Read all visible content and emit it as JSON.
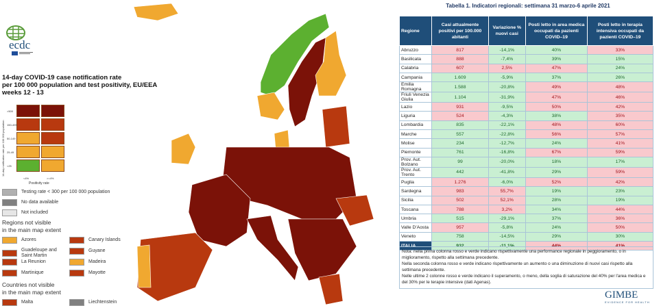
{
  "map": {
    "logo_text": "ecdc",
    "title_lines": [
      "14-day COVID-19 case notification rate",
      "per 100 000 population and test positivity, EU/EEA",
      "weeks 12 - 13"
    ],
    "matrix": {
      "y_axis_label": "14-day notification rate per 100 000 population",
      "y_ticks": [
        ">500",
        "150-499",
        "50-149",
        "25-49",
        "<25"
      ],
      "x_axis_label": "Positivity rate",
      "x_ticks": [
        "<4%",
        ">=4%"
      ],
      "colors": [
        [
          "#7b1208",
          "#7b1208"
        ],
        [
          "#b8390f",
          "#b8390f"
        ],
        [
          "#f0a830",
          "#b8390f"
        ],
        [
          "#f0a830",
          "#f0a830"
        ],
        [
          "#5cb030",
          "#f0a830"
        ]
      ]
    },
    "legend": [
      {
        "label": "Testing rate < 300 per 100 000 population",
        "color": "#b0b0b0"
      },
      {
        "label": "No data available",
        "color": "#808080"
      },
      {
        "label": "Not included",
        "color": "#e6e6e6"
      }
    ],
    "regions_heading": [
      "Regions not visible",
      "in the main map extent"
    ],
    "regions": [
      {
        "label": "Azores",
        "color": "#f0a830"
      },
      {
        "label": "Canary Islands",
        "color": "#b8390f"
      },
      {
        "label": "Guadeloupe and Saint Martin",
        "color": "#b8390f"
      },
      {
        "label": "Guyane",
        "color": "#b8390f"
      },
      {
        "label": "La Reunion",
        "color": "#b8390f"
      },
      {
        "label": "Madeira",
        "color": "#f0a830"
      },
      {
        "label": "Martinique",
        "color": "#b8390f"
      },
      {
        "label": "Mayotte",
        "color": "#b8390f"
      }
    ],
    "countries_heading": [
      "Countries not visible",
      "in the main map extent"
    ],
    "countries": [
      {
        "label": "Malta",
        "color": "#b8390f"
      },
      {
        "label": "Liechtenstein",
        "color": "#808080"
      }
    ]
  },
  "table": {
    "title": "Tabella 1. Indicatori regionali: settimana 31 marzo-6 aprile 2021",
    "headers": [
      "Regione",
      "Casi attualmente positivi per 100.000 abitanti",
      "Variazione % nuovi casi",
      "Posti letto in area medica occupati da pazienti COVID–19",
      "Posti letto in terapia intensiva occupati da pazienti COVID–19"
    ],
    "rows": [
      [
        "Abruzzo",
        [
          "817",
          "red"
        ],
        [
          "-14,1%",
          "green"
        ],
        [
          "40%",
          "green"
        ],
        [
          "33%",
          "red"
        ]
      ],
      [
        "Basilicata",
        [
          "888",
          "red"
        ],
        [
          "-7,4%",
          "green"
        ],
        [
          "39%",
          "green"
        ],
        [
          "15%",
          "green"
        ]
      ],
      [
        "Calabria",
        [
          "607",
          "red"
        ],
        [
          "2,5%",
          "red"
        ],
        [
          "47%",
          "red"
        ],
        [
          "24%",
          "green"
        ]
      ],
      [
        "Campania",
        [
          "1.609",
          "green"
        ],
        [
          "-5,9%",
          "green"
        ],
        [
          "37%",
          "green"
        ],
        [
          "26%",
          "green"
        ]
      ],
      [
        "Emilia Romagna",
        [
          "1.588",
          "green"
        ],
        [
          "-20,8%",
          "green"
        ],
        [
          "49%",
          "red"
        ],
        [
          "48%",
          "red"
        ]
      ],
      [
        "Friuli Venezia Giulia",
        [
          "1.104",
          "green"
        ],
        [
          "-31,9%",
          "green"
        ],
        [
          "47%",
          "red"
        ],
        [
          "46%",
          "red"
        ]
      ],
      [
        "Lazio",
        [
          "931",
          "red"
        ],
        [
          "-9,5%",
          "green"
        ],
        [
          "50%",
          "red"
        ],
        [
          "42%",
          "red"
        ]
      ],
      [
        "Liguria",
        [
          "524",
          "red"
        ],
        [
          "-4,3%",
          "green"
        ],
        [
          "38%",
          "green"
        ],
        [
          "35%",
          "red"
        ]
      ],
      [
        "Lombardia",
        [
          "835",
          "green"
        ],
        [
          "-22,1%",
          "green"
        ],
        [
          "48%",
          "red"
        ],
        [
          "60%",
          "red"
        ]
      ],
      [
        "Marche",
        [
          "557",
          "green"
        ],
        [
          "-22,8%",
          "green"
        ],
        [
          "56%",
          "red"
        ],
        [
          "57%",
          "red"
        ]
      ],
      [
        "Molise",
        [
          "234",
          "green"
        ],
        [
          "-12,7%",
          "green"
        ],
        [
          "24%",
          "green"
        ],
        [
          "41%",
          "red"
        ]
      ],
      [
        "Piemonte",
        [
          "761",
          "green"
        ],
        [
          "-16,8%",
          "green"
        ],
        [
          "67%",
          "red"
        ],
        [
          "59%",
          "red"
        ]
      ],
      [
        "Prov. Aut. Bolzano",
        [
          "99",
          "green"
        ],
        [
          "-20,0%",
          "green"
        ],
        [
          "18%",
          "green"
        ],
        [
          "17%",
          "green"
        ]
      ],
      [
        "Prov. Aut. Trento",
        [
          "442",
          "green"
        ],
        [
          "-41,8%",
          "green"
        ],
        [
          "29%",
          "green"
        ],
        [
          "59%",
          "red"
        ]
      ],
      [
        "Puglia",
        [
          "1.276",
          "red"
        ],
        [
          "-6,0%",
          "green"
        ],
        [
          "52%",
          "red"
        ],
        [
          "42%",
          "red"
        ]
      ],
      [
        "Sardegna",
        [
          "983",
          "red"
        ],
        [
          "55,7%",
          "red"
        ],
        [
          "19%",
          "green"
        ],
        [
          "23%",
          "green"
        ]
      ],
      [
        "Sicilia",
        [
          "502",
          "red"
        ],
        [
          "52,1%",
          "red"
        ],
        [
          "28%",
          "green"
        ],
        [
          "19%",
          "green"
        ]
      ],
      [
        "Toscana",
        [
          "788",
          "red"
        ],
        [
          "3,2%",
          "red"
        ],
        [
          "34%",
          "green"
        ],
        [
          "44%",
          "red"
        ]
      ],
      [
        "Umbria",
        [
          "515",
          "green"
        ],
        [
          "-29,1%",
          "green"
        ],
        [
          "37%",
          "green"
        ],
        [
          "36%",
          "red"
        ]
      ],
      [
        "Valle D'Aosta",
        [
          "957",
          "red"
        ],
        [
          "-5,8%",
          "green"
        ],
        [
          "24%",
          "green"
        ],
        [
          "50%",
          "red"
        ]
      ],
      [
        "Veneto",
        [
          "758",
          "green"
        ],
        [
          "-14,5%",
          "green"
        ],
        [
          "29%",
          "green"
        ],
        [
          "30%",
          "green"
        ]
      ]
    ],
    "total": [
      "ITALIA",
      [
        "932",
        "green"
      ],
      [
        "-11,1%",
        "green"
      ],
      [
        "44%",
        "red"
      ],
      [
        "41%",
        "red"
      ]
    ],
    "notes": [
      "Nota: nella prima colonna rosso e verde indicano rispettivamente una performance regionale in peggioramento, o in miglioramento, rispetto alla settimana precedente.",
      "Nella seconda colonna rosso e verde indicano rispettivamente un aumento o una diminuzione di nuovi casi rispetto alla settimana precedente.",
      "Nelle ultime 2 colonne rosso e verde indicano il superamento, o meno, della soglia di saturazione del 40% per l'area medica e del 30% per le terapie intensive (dati Agenas)."
    ]
  },
  "brand": {
    "name": "GIMBE",
    "tagline": "EVIDENCE FOR HEALTH"
  }
}
